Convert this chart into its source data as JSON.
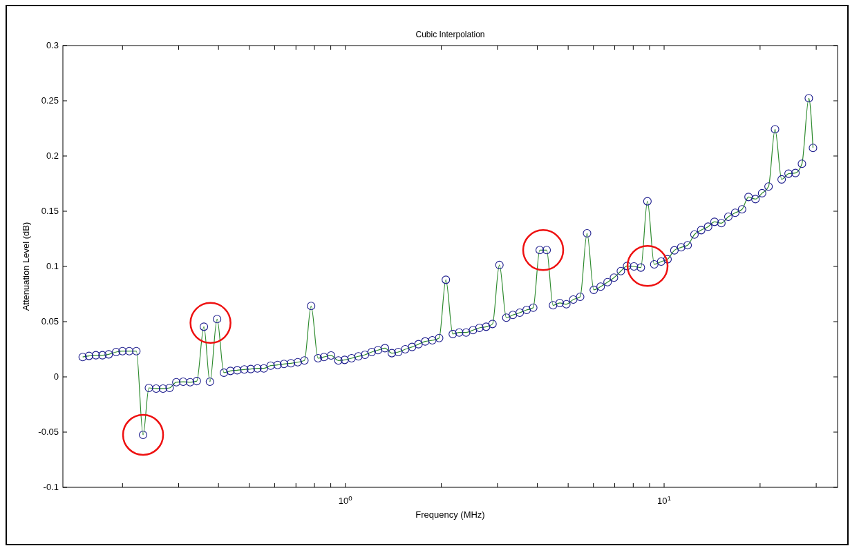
{
  "chart_data": {
    "type": "line",
    "title": "Cubic Interpolation",
    "xlabel": "Frequency (MHz)",
    "ylabel": "Attenuation Level (dB)",
    "log": "x",
    "xlim": [
      0.13,
      35
    ],
    "xticks": [
      {
        "value": 0.2,
        "label": null
      },
      {
        "value": 0.3,
        "label": null
      },
      {
        "value": 0.4,
        "label": null
      },
      {
        "value": 0.5,
        "label": null
      },
      {
        "value": 0.6,
        "label": null
      },
      {
        "value": 0.7,
        "label": null
      },
      {
        "value": 0.8,
        "label": null
      },
      {
        "value": 0.9,
        "label": null
      },
      {
        "value": 1,
        "label": "10$^{0}$"
      },
      {
        "value": 2,
        "label": null
      },
      {
        "value": 3,
        "label": null
      },
      {
        "value": 4,
        "label": null
      },
      {
        "value": 5,
        "label": null
      },
      {
        "value": 6,
        "label": null
      },
      {
        "value": 7,
        "label": null
      },
      {
        "value": 8,
        "label": null
      },
      {
        "value": 9,
        "label": null
      },
      {
        "value": 10,
        "label": "10$^{1}$"
      },
      {
        "value": 20,
        "label": null
      },
      {
        "value": 30,
        "label": null
      }
    ],
    "ylim": [
      -0.1,
      0.3
    ],
    "yticks": [
      -0.1,
      -0.05,
      0,
      0.05,
      0.1,
      0.15,
      0.2,
      0.25,
      0.3
    ],
    "grid": false,
    "x": [
      0.15,
      0.157,
      0.165,
      0.173,
      0.181,
      0.191,
      0.2,
      0.21,
      0.221,
      0.232,
      0.242,
      0.255,
      0.268,
      0.281,
      0.295,
      0.31,
      0.326,
      0.342,
      0.36,
      0.376,
      0.396,
      0.416,
      0.436,
      0.458,
      0.482,
      0.505,
      0.53,
      0.555,
      0.583,
      0.613,
      0.642,
      0.675,
      0.709,
      0.744,
      0.781,
      0.821,
      0.857,
      0.902,
      0.951,
      0.995,
      1.046,
      1.099,
      1.152,
      1.21,
      1.266,
      1.331,
      1.399,
      1.466,
      1.541,
      1.619,
      1.696,
      1.78,
      1.874,
      1.969,
      2.067,
      2.173,
      2.276,
      2.392,
      2.514,
      2.634,
      2.764,
      2.895,
      3.043,
      3.199,
      3.353,
      3.524,
      3.704,
      3.885,
      4.072,
      4.28,
      4.483,
      4.705,
      4.935,
      5.187,
      5.452,
      5.731,
      6.016,
      6.323,
      6.645,
      6.961,
      7.316,
      7.652,
      8.042,
      8.453,
      8.864,
      9.312,
      9.788,
      10.25,
      10.77,
      11.31,
      11.85,
      12.45,
      13.07,
      13.74,
      14.39,
      15.12,
      15.9,
      16.71,
      17.56,
      18.4,
      19.34,
      20.29,
      21.26,
      22.28,
      23.37,
      24.57,
      25.82,
      27.06,
      28.44,
      29.31
    ],
    "series": [
      {
        "color": "#2e8b2e",
        "marker": "none",
        "line_style": "solid",
        "values": [
          0.018,
          0.019,
          0.0196,
          0.0196,
          0.0204,
          0.0225,
          0.0233,
          0.0233,
          0.0233,
          -0.0525,
          -0.01,
          -0.0106,
          -0.0106,
          -0.01,
          -0.0048,
          -0.0044,
          -0.0048,
          -0.0038,
          0.0454,
          -0.0044,
          0.0523,
          0.0038,
          0.0054,
          0.006,
          0.0067,
          0.0071,
          0.0077,
          0.0077,
          0.0102,
          0.0108,
          0.0117,
          0.0123,
          0.0133,
          0.0148,
          0.0642,
          0.0169,
          0.018,
          0.0194,
          0.0148,
          0.0154,
          0.0169,
          0.0186,
          0.02,
          0.0225,
          0.0242,
          0.026,
          0.0215,
          0.0225,
          0.025,
          0.0271,
          0.0296,
          0.0321,
          0.0331,
          0.0352,
          0.0879,
          0.0388,
          0.0402,
          0.0402,
          0.0423,
          0.0444,
          0.0454,
          0.0479,
          0.1013,
          0.0536,
          0.0561,
          0.0581,
          0.0606,
          0.0627,
          0.1148,
          0.1148,
          0.0648,
          0.0669,
          0.0658,
          0.07,
          0.0725,
          0.13,
          0.0788,
          0.0817,
          0.0858,
          0.0898,
          0.0958,
          0.1004,
          0.1,
          0.099,
          0.159,
          0.1019,
          0.1044,
          0.1065,
          0.1146,
          0.1173,
          0.1192,
          0.1289,
          0.1329,
          0.136,
          0.1404,
          0.1392,
          0.145,
          0.1486,
          0.1517,
          0.1629,
          0.161,
          0.1663,
          0.1723,
          0.2242,
          0.1788,
          0.184,
          0.1846,
          0.193,
          0.2523,
          0.2073
        ]
      },
      {
        "type": "scatter",
        "color": "#1a1a8c",
        "marker": "circle",
        "values": [
          0.018,
          0.019,
          0.0196,
          0.0196,
          0.0204,
          0.0225,
          0.0233,
          0.0233,
          0.0233,
          -0.0525,
          -0.01,
          -0.0106,
          -0.0106,
          -0.01,
          -0.0048,
          -0.0044,
          -0.0048,
          -0.0038,
          0.0454,
          -0.0044,
          0.0523,
          0.0038,
          0.0054,
          0.006,
          0.0067,
          0.0071,
          0.0077,
          0.0077,
          0.0102,
          0.0108,
          0.0117,
          0.0123,
          0.0133,
          0.0148,
          0.0642,
          0.0169,
          0.018,
          0.0194,
          0.0148,
          0.0154,
          0.0169,
          0.0186,
          0.02,
          0.0225,
          0.0242,
          0.026,
          0.0215,
          0.0225,
          0.025,
          0.0271,
          0.0296,
          0.0321,
          0.0331,
          0.0352,
          0.0879,
          0.0388,
          0.0402,
          0.0402,
          0.0423,
          0.0444,
          0.0454,
          0.0479,
          0.1013,
          0.0536,
          0.0561,
          0.0581,
          0.0606,
          0.0627,
          0.1148,
          0.1148,
          0.0648,
          0.0669,
          0.0658,
          0.07,
          0.0725,
          0.13,
          0.0788,
          0.0817,
          0.0858,
          0.0898,
          0.0958,
          0.1004,
          0.1,
          0.099,
          0.159,
          0.1019,
          0.1044,
          0.1065,
          0.1146,
          0.1173,
          0.1192,
          0.1289,
          0.1329,
          0.136,
          0.1404,
          0.1392,
          0.145,
          0.1486,
          0.1517,
          0.1629,
          0.161,
          0.1663,
          0.1723,
          0.2242,
          0.1788,
          0.184,
          0.1846,
          0.193,
          0.2523,
          0.2073
        ]
      }
    ]
  }
}
